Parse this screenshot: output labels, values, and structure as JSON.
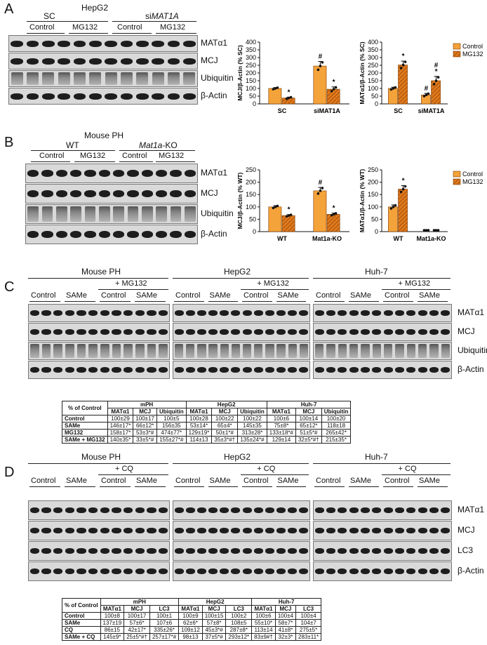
{
  "panels": {
    "A": {
      "letter": "A",
      "cell": "HepG2",
      "groups": [
        "SC",
        "siMAT1A"
      ],
      "group_prefix": [
        "",
        "si"
      ],
      "group_italic": [
        "",
        "MAT1A"
      ],
      "treatments": [
        "Control",
        "MG132",
        "Control",
        "MG132"
      ],
      "markers": [
        "MATα1",
        "MCJ",
        "Ubiquitin",
        "β-Actin"
      ]
    },
    "B": {
      "letter": "B",
      "cell": "Mouse PH",
      "groups": [
        "WT",
        "Mat1a-KO"
      ],
      "group_italic": [
        "",
        "Mat1a"
      ],
      "group_suffix": [
        "",
        "-KO"
      ],
      "treatments": [
        "Control",
        "MG132",
        "Control",
        "MG132"
      ],
      "markers": [
        "MATα1",
        "MCJ",
        "Ubiquitin",
        "β-Actin"
      ]
    },
    "C": {
      "letter": "C",
      "cells": [
        "Mouse PH",
        "HepG2",
        "Huh-7"
      ],
      "treat_header": "+ MG132",
      "treatments": [
        "Control",
        "SAMe",
        "Control",
        "SAMe"
      ],
      "markers": [
        "MATα1",
        "MCJ",
        "Ubiquitin",
        "β-Actin"
      ]
    },
    "D": {
      "letter": "D",
      "cells": [
        "Mouse PH",
        "HepG2",
        "Huh-7"
      ],
      "treat_header": "+ CQ",
      "treatments": [
        "Control",
        "SAMe",
        "Control",
        "SAMe"
      ],
      "markers": [
        "MATα1",
        "MCJ",
        "LC3",
        "β-Actin"
      ]
    }
  },
  "chart_data": [
    {
      "type": "bar",
      "panel": "A",
      "ylabel": "MCJ/β-Actin (% SC)",
      "categories": [
        "SC",
        "siMAT1A"
      ],
      "ylim": [
        0,
        400
      ],
      "yticks": [
        0,
        50,
        100,
        150,
        200,
        250,
        300,
        350,
        400
      ],
      "series": [
        {
          "name": "Control",
          "values": [
            100,
            245
          ],
          "errors": [
            6,
            30
          ]
        },
        {
          "name": "MG132",
          "values": [
            38,
            95
          ],
          "errors": [
            6,
            15
          ]
        }
      ],
      "annotations": [
        {
          "category": "SC",
          "series": "MG132",
          "text": "*"
        },
        {
          "category": "siMAT1A",
          "series": "Control",
          "text": "#"
        },
        {
          "category": "siMAT1A",
          "series": "MG132",
          "text": "*"
        }
      ]
    },
    {
      "type": "bar",
      "panel": "A",
      "ylabel": "MATα1/β-Actin (% SC)",
      "categories": [
        "SC",
        "siMAT1A"
      ],
      "ylim": [
        0,
        400
      ],
      "yticks": [
        0,
        50,
        100,
        150,
        200,
        250,
        300,
        350,
        400
      ],
      "legend": [
        "Control",
        "MG132"
      ],
      "series": [
        {
          "name": "Control",
          "values": [
            100,
            58
          ],
          "errors": [
            8,
            10
          ]
        },
        {
          "name": "MG132",
          "values": [
            252,
            150
          ],
          "errors": [
            25,
            28
          ]
        }
      ],
      "annotations": [
        {
          "category": "SC",
          "series": "MG132",
          "text": "*"
        },
        {
          "category": "siMAT1A",
          "series": "Control",
          "text": "#"
        },
        {
          "category": "siMAT1A",
          "series": "MG132",
          "text": "#\n*"
        }
      ]
    },
    {
      "type": "bar",
      "panel": "B",
      "ylabel": "MCJ/β-Actin (% WT)",
      "categories": [
        "WT",
        "Mat1a-KO"
      ],
      "ylim": [
        0,
        250
      ],
      "yticks": [
        0,
        50,
        100,
        150,
        200,
        250
      ],
      "series": [
        {
          "name": "Control",
          "values": [
            100,
            165
          ],
          "errors": [
            5,
            14
          ]
        },
        {
          "name": "MG132",
          "values": [
            65,
            70
          ],
          "errors": [
            4,
            5
          ]
        }
      ],
      "annotations": [
        {
          "category": "WT",
          "series": "MG132",
          "text": "*"
        },
        {
          "category": "Mat1a-KO",
          "series": "Control",
          "text": "#"
        },
        {
          "category": "Mat1a-KO",
          "series": "MG132",
          "text": "*"
        }
      ]
    },
    {
      "type": "bar",
      "panel": "B",
      "ylabel": "MATα1/β-Actin (% WT)",
      "categories": [
        "WT",
        "Mat1a-KO"
      ],
      "ylim": [
        0,
        250
      ],
      "yticks": [
        0,
        50,
        100,
        150,
        200,
        250
      ],
      "legend": [
        "Control",
        "MG132"
      ],
      "series": [
        {
          "name": "Control",
          "values": [
            100,
            0
          ],
          "errors": [
            8,
            0
          ]
        },
        {
          "name": "MG132",
          "values": [
            172,
            0
          ],
          "errors": [
            14,
            0
          ]
        }
      ],
      "annotations": [
        {
          "category": "WT",
          "series": "MG132",
          "text": "*"
        }
      ]
    }
  ],
  "tables": {
    "C": {
      "corner": "% of Control",
      "groups": [
        "mPH",
        "HepG2",
        "Huh-7"
      ],
      "cols": [
        "MATα1",
        "MCJ",
        "Ubiquitin",
        "MATα1",
        "MCJ",
        "Ubiquitin",
        "MATα1",
        "MCJ",
        "Ubiquitin"
      ],
      "rows": [
        {
          "label": "Control",
          "cells": [
            "100±29",
            "100±17",
            "100±5",
            "100±28",
            "100±22",
            "100±22",
            "100±6",
            "100±14",
            "100±20"
          ]
        },
        {
          "label": "SAMe",
          "cells": [
            "146±17*",
            "66±12*",
            "156±35",
            "53±14*",
            "65±4*",
            "145±35",
            "75±8*",
            "65±12*",
            "118±18"
          ]
        },
        {
          "label": "MG132",
          "cells": [
            "158±17*",
            "53±3*#",
            "474±77*",
            "129±19*",
            "50±1*#",
            "313±28*",
            "133±18*#",
            "51±5*#",
            "265±42*"
          ]
        },
        {
          "label": "SAMe + MG132",
          "cells": [
            "140±35*",
            "33±5*#",
            "155±27*#",
            "114±13",
            "35±3*#†",
            "135±24*#",
            "129±14",
            "32±5*#†",
            "215±35*"
          ]
        }
      ]
    },
    "D": {
      "corner": "% of Control",
      "groups": [
        "mPH",
        "HepG2",
        "Huh-7"
      ],
      "cols": [
        "MATα1",
        "MCJ",
        "LC3",
        "MATα1",
        "MCJ",
        "LC3",
        "MATα1",
        "MCJ",
        "LC3"
      ],
      "rows": [
        {
          "label": "Control",
          "cells": [
            "100±8",
            "100±17",
            "100±1",
            "100±9",
            "100±15",
            "100±2",
            "100±6",
            "100±4",
            "100±4"
          ]
        },
        {
          "label": "SAMe",
          "cells": [
            "137±19",
            "57±6*",
            "107±6",
            "62±6*",
            "57±8*",
            "108±5",
            "55±10*",
            "58±7*",
            "104±7"
          ]
        },
        {
          "label": "CQ",
          "cells": [
            "86±15",
            "42±17*",
            "335±26*",
            "109±12",
            "45±3*#",
            "287±8*",
            "113±14",
            "41±8*",
            "275±5*"
          ]
        },
        {
          "label": "SAMe + CQ",
          "cells": [
            "145±9*",
            "25±5*#†",
            "257±17*#",
            "98±13",
            "37±5*#",
            "293±12*",
            "83±9#†",
            "32±3*",
            "283±11*"
          ]
        }
      ]
    }
  },
  "colors": {
    "control_bar": "#f4a23a",
    "mg132_bar": "#e07a1c",
    "hatch": "#8a3d06",
    "blot_bg": "#d9d9d9",
    "band": "#1d1d1d"
  }
}
